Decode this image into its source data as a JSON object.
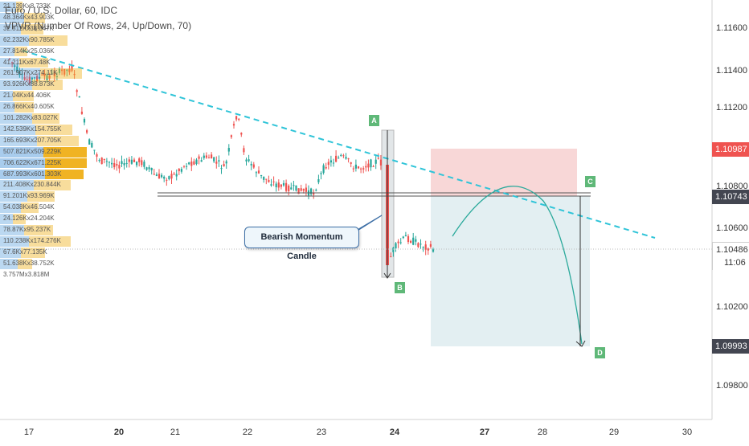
{
  "header": {
    "symbol_line": "Euro / U.S. Dollar, 60, IDC",
    "indicator_line": "VPVR (Number Of Rows, 24, Up/Down, 70)"
  },
  "colors": {
    "up_candle": "#26a69a",
    "down_candle": "#ef5350",
    "trendline": "#2fc4d8",
    "stop_zone": "#f8d7d7",
    "target_zone": "#e3eff2",
    "vpvr_up": "#3d8fd6",
    "vpvr_down": "#f0b323",
    "price_red": "#ef5350",
    "price_dark": "#434651",
    "label_green": "#5fb878"
  },
  "price_axis": {
    "ticks": [
      "1.11600",
      "1.11400",
      "1.11200",
      "1.10800",
      "1.10600",
      "1.10200",
      "1.09800"
    ],
    "price_labels": [
      {
        "text": "1.10987",
        "style": "red"
      },
      {
        "text": "1.10743",
        "style": "dark"
      },
      {
        "text": "1.10486",
        "style": "light"
      },
      {
        "text": "11:06",
        "style": "light"
      },
      {
        "text": "1.09993",
        "style": "dark"
      }
    ]
  },
  "time_axis": {
    "ticks": [
      {
        "text": "17",
        "bold": false
      },
      {
        "text": "20",
        "bold": true
      },
      {
        "text": "21",
        "bold": false
      },
      {
        "text": "22",
        "bold": false
      },
      {
        "text": "23",
        "bold": false
      },
      {
        "text": "24",
        "bold": true
      },
      {
        "text": "27",
        "bold": true
      },
      {
        "text": "28",
        "bold": false
      },
      {
        "text": "29",
        "bold": false
      },
      {
        "text": "30",
        "bold": false
      }
    ]
  },
  "vpvr": {
    "rows": [
      {
        "label": "21.139Kx8.733K",
        "up": 20,
        "down": 8
      },
      {
        "label": "48.364Kx43.903K",
        "up": 30,
        "down": 26
      },
      {
        "label": "32.811Kx38.847K",
        "up": 26,
        "down": 28
      },
      {
        "label": "62.232Kx90.785K",
        "up": 36,
        "down": 48
      },
      {
        "label": "27.814Kx25.036K",
        "up": 18,
        "down": 16
      },
      {
        "label": "41.211Kx67.48K",
        "up": 24,
        "down": 36
      },
      {
        "label": "261.907Kx274.11K",
        "up": 50,
        "down": 52
      },
      {
        "label": "93.926Kx88.873K",
        "up": 40,
        "down": 38
      },
      {
        "label": "21.04Kx44.406K",
        "up": 16,
        "down": 26
      },
      {
        "label": "26.866Kx40.605K",
        "up": 18,
        "down": 24
      },
      {
        "label": "101.282Kx83.027K",
        "up": 40,
        "down": 34
      },
      {
        "label": "142.539Kx154.755K",
        "up": 44,
        "down": 46
      },
      {
        "label": "165.693Kx207.705K",
        "up": 46,
        "down": 52
      },
      {
        "label": "507.821Kx509.229K",
        "up": 54,
        "down": 54
      },
      {
        "label": "706.622Kx671.225K",
        "up": 56,
        "down": 52
      },
      {
        "label": "687.993Kx601.303K",
        "up": 56,
        "down": 48
      },
      {
        "label": "211.408Kx230.844K",
        "up": 42,
        "down": 46
      },
      {
        "label": "91.201Kx93.969K",
        "up": 34,
        "down": 34
      },
      {
        "label": "54.038Kx46.504K",
        "up": 26,
        "down": 22
      },
      {
        "label": "24.126Kx24.204K",
        "up": 16,
        "down": 16
      },
      {
        "label": "78.87Kx95.237K",
        "up": 30,
        "down": 36
      },
      {
        "label": "110.238Kx174.276K",
        "up": 36,
        "down": 52
      },
      {
        "label": "67.6Kx77.135K",
        "up": 26,
        "down": 30
      },
      {
        "label": "51.638Kx38.752K",
        "up": 22,
        "down": 18
      },
      {
        "label": "3.757Mx3.818M",
        "up": 0,
        "down": 0
      }
    ]
  },
  "annotations": {
    "callout": "Bearish Momentum Candle",
    "point_labels": [
      "A",
      "B",
      "C",
      "D"
    ]
  }
}
